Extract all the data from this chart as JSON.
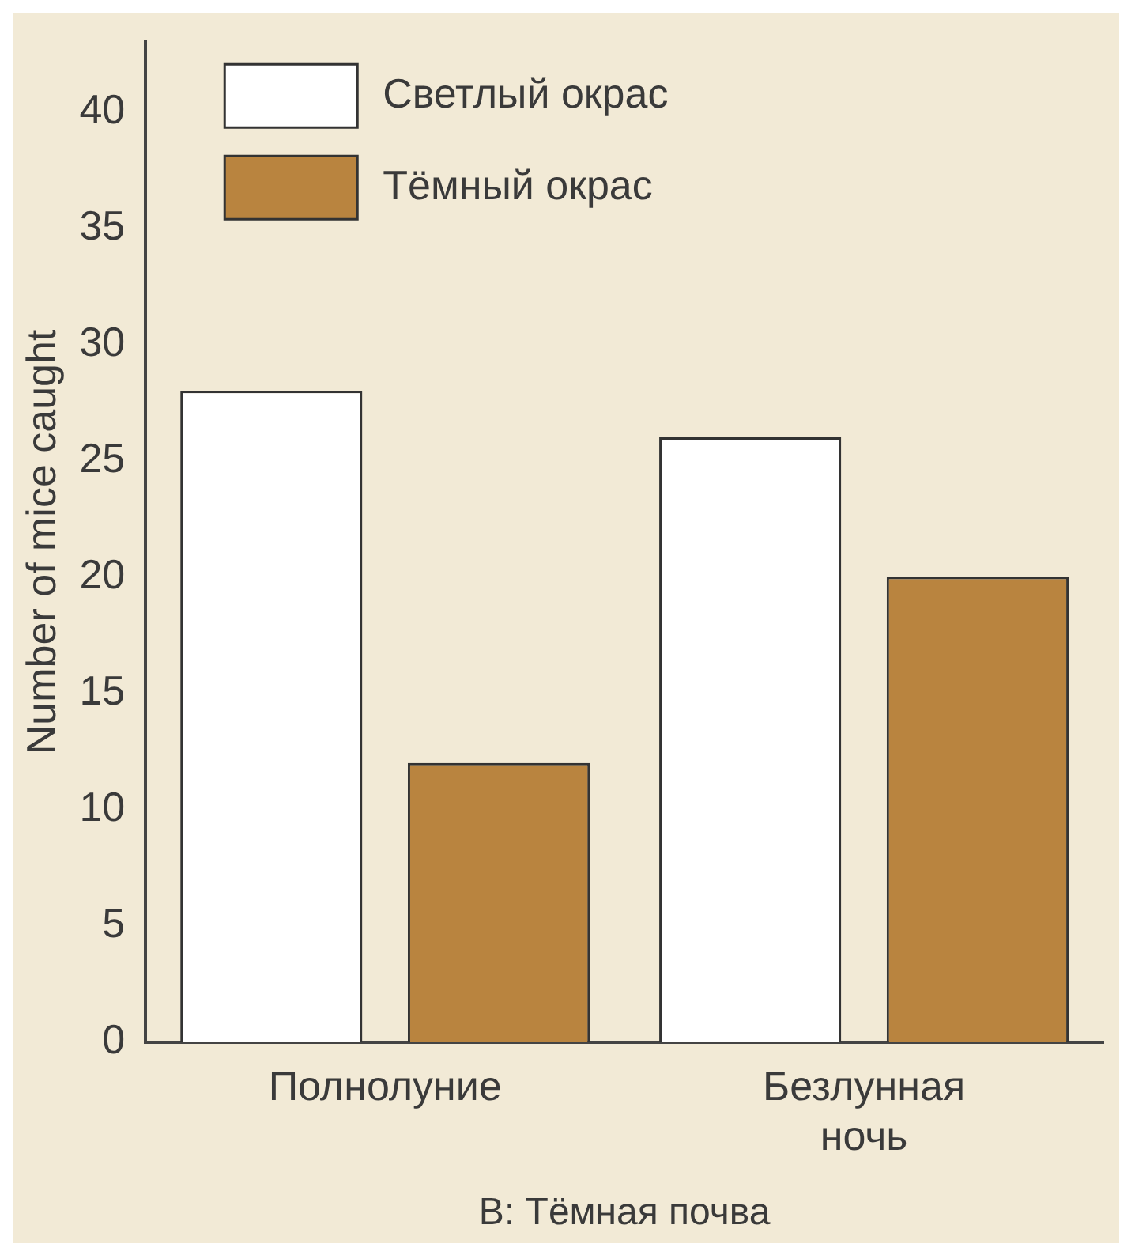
{
  "chart_data": {
    "type": "bar",
    "xlabel": "B: Тёмная почва",
    "ylabel": "Number of mice caught",
    "categories": [
      "Полнолуние",
      "Безлунная ночь"
    ],
    "series": [
      {
        "name": "Светлый окрас",
        "color": "#ffffff",
        "values": [
          28,
          26
        ]
      },
      {
        "name": "Тёмный окрас",
        "color": "#b9843f",
        "values": [
          12,
          20
        ]
      }
    ],
    "ylim": [
      0,
      43
    ],
    "yticks": [
      0,
      5,
      10,
      15,
      20,
      25,
      30,
      35,
      40
    ],
    "grid": false,
    "legend": "top left"
  }
}
